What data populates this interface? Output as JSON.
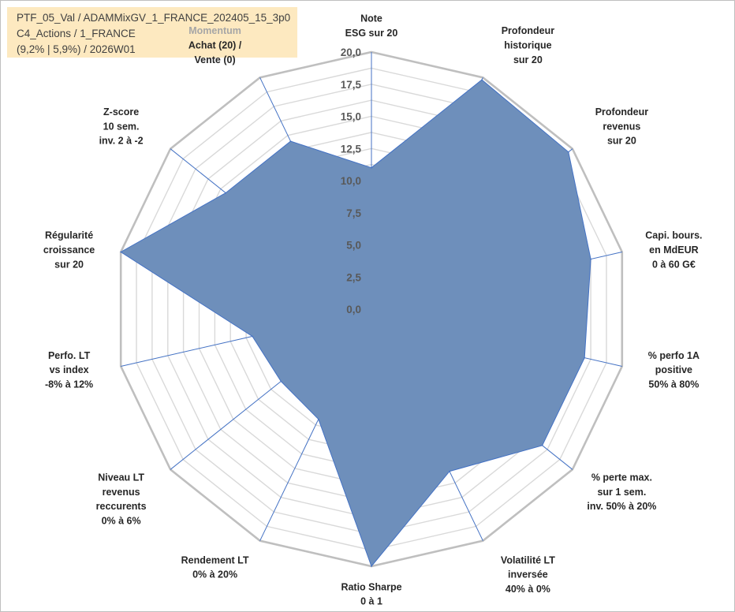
{
  "info": {
    "line1": "PTF_05_Val / ADAMMixGV_1_FRANCE_202405_15_3p0",
    "line2": "C4_Actions / 1_FRANCE",
    "line3": "(9,2% | 5,9%) / 2026W01"
  },
  "chart_data": {
    "type": "radar",
    "title": "",
    "rmin": 0,
    "rmax": 20,
    "ticks": [
      "0,0",
      "2,5",
      "5,0",
      "7,5",
      "10,0",
      "12,5",
      "15,0",
      "17,5",
      "20,0"
    ],
    "tick_values": [
      0,
      2.5,
      5,
      7.5,
      10,
      12.5,
      15,
      17.5,
      20
    ],
    "minor_step": 1.25,
    "colors": {
      "fill": "#6e8fbb",
      "stroke": "#4472c4",
      "axis": "#4472c4",
      "grid": "#d9d9d9",
      "outer": "#bfbfbf"
    },
    "axes": [
      {
        "pre": "",
        "lines": [
          "Note",
          "ESG sur 20"
        ],
        "value": 11.0
      },
      {
        "pre": "",
        "lines": [
          "Profondeur",
          "historique",
          "sur 20"
        ],
        "value": 19.8
      },
      {
        "pre": "",
        "lines": [
          "Profondeur",
          "revenus",
          "sur 20"
        ],
        "value": 19.6
      },
      {
        "pre": "",
        "lines": [
          "Capi. bours.",
          "en MdEUR",
          "0 à 60 G€"
        ],
        "value": 17.5
      },
      {
        "pre": "",
        "lines": [
          "% perfo 1A",
          "positive",
          "50% à 80%"
        ],
        "value": 17.0
      },
      {
        "pre": "",
        "lines": [
          "% perte max.",
          "sur 1 sem.",
          "inv. 50% à 20%"
        ],
        "value": 17.0
      },
      {
        "pre": "",
        "lines": [
          "Volatilité LT",
          "inversée",
          "40% à 0%"
        ],
        "value": 14.0
      },
      {
        "pre": "",
        "lines": [
          "Ratio Sharpe",
          "0 à 1"
        ],
        "value": 20.0
      },
      {
        "pre": "",
        "lines": [
          "Rendement LT",
          "0% à 20%"
        ],
        "value": 9.5
      },
      {
        "pre": "",
        "lines": [
          "Niveau LT",
          "revenus",
          "reccurents",
          "0% à 6%"
        ],
        "value": 9.0
      },
      {
        "pre": "",
        "lines": [
          "Perfo. LT",
          "vs index",
          "-8% à 12%"
        ],
        "value": 9.5
      },
      {
        "pre": "",
        "lines": [
          "Régularité",
          "croissance",
          "sur 20"
        ],
        "value": 20.0
      },
      {
        "pre": "",
        "lines": [
          "Z-score",
          "10 sem.",
          "inv. 2 à -2"
        ],
        "value": 14.5
      },
      {
        "pre": "Momentum",
        "lines": [
          "Achat (20) /",
          "Vente (0)"
        ],
        "value": 14.5
      }
    ]
  }
}
